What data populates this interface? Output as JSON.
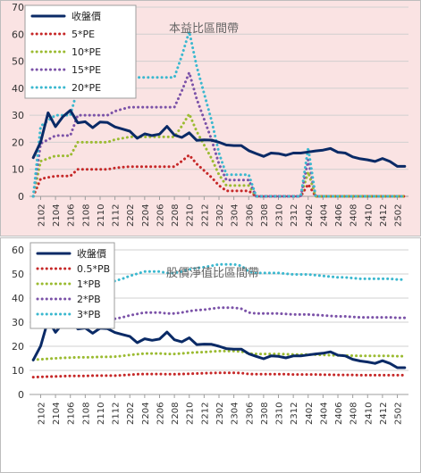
{
  "chart_data": [
    {
      "type": "line",
      "title": "本益比區間帶",
      "xlabel": "",
      "ylabel": "",
      "ylim": [
        0,
        70
      ],
      "yticks": [
        0,
        10,
        20,
        30,
        40,
        50,
        60,
        70
      ],
      "grid": true,
      "background": "#fae3e3",
      "legend_position": "top-left",
      "x": [
        "2101",
        "2102",
        "2103",
        "2104",
        "2105",
        "2106",
        "2107",
        "2108",
        "2109",
        "2110",
        "2111",
        "2112",
        "2201",
        "2202",
        "2203",
        "2204",
        "2205",
        "2206",
        "2207",
        "2208",
        "2209",
        "2210",
        "2211",
        "2212",
        "2301",
        "2302",
        "2303",
        "2304",
        "2305",
        "2306",
        "2307",
        "2308",
        "2309",
        "2310",
        "2311",
        "2312",
        "2401",
        "2402",
        "2403",
        "2404",
        "2405",
        "2406",
        "2407",
        "2408",
        "2409",
        "2410",
        "2411",
        "2412",
        "2501",
        "2502",
        "2503"
      ],
      "xtick_labels": [
        "2102",
        "2104",
        "2106",
        "2108",
        "2110",
        "2112",
        "2202",
        "2204",
        "2206",
        "2208",
        "2210",
        "2212",
        "2302",
        "2304",
        "2306",
        "2308",
        "2310",
        "2312",
        "2402",
        "2404",
        "2406",
        "2408",
        "2410",
        "2412",
        "2502"
      ],
      "series": [
        {
          "name": "收盤價",
          "color": "#0a2a66",
          "style": "solid",
          "values": [
            14.3,
            20.1,
            30.9,
            25.8,
            29.5,
            31.8,
            27.2,
            27.6,
            25.4,
            27.5,
            27.3,
            25.7,
            24.9,
            24.1,
            21.5,
            23.1,
            22.5,
            23.0,
            25.9,
            22.7,
            21.8,
            23.5,
            20.7,
            20.9,
            20.8,
            20.0,
            19.0,
            18.8,
            18.8,
            16.9,
            15.8,
            14.8,
            16.0,
            15.8,
            15.2,
            16.0,
            16.0,
            16.4,
            16.8,
            17.1,
            17.7,
            16.3,
            16.0,
            14.6,
            13.9,
            13.5,
            12.9,
            14.0,
            12.9,
            11.1,
            11.1
          ]
        },
        {
          "name": "5*PE",
          "color": "#c62828",
          "style": "dotted",
          "values": [
            0,
            6.5,
            7.0,
            7.5,
            7.5,
            7.5,
            10.0,
            10.0,
            10.0,
            10.0,
            10.0,
            10.5,
            10.8,
            11.0,
            11.0,
            11.0,
            11.0,
            11.0,
            11.0,
            11.0,
            13.0,
            15.3,
            12.0,
            9.5,
            7.0,
            4.0,
            2.0,
            2.0,
            2.0,
            2.0,
            0,
            0,
            0,
            0,
            0,
            0,
            0,
            4.5,
            0,
            0,
            0,
            0,
            0,
            0,
            0,
            0,
            0,
            0,
            0,
            0,
            0
          ]
        },
        {
          "name": "10*PE",
          "color": "#9bbb31",
          "style": "dotted",
          "values": [
            0,
            13.0,
            14.0,
            15.0,
            15.0,
            15.0,
            20.0,
            20.0,
            20.0,
            20.0,
            20.0,
            21.0,
            21.5,
            22.0,
            22.0,
            22.0,
            22.0,
            22.0,
            22.0,
            22.0,
            26.0,
            30.5,
            24.0,
            19.0,
            14.0,
            8.0,
            4.0,
            4.0,
            4.0,
            4.0,
            0,
            0,
            0,
            0,
            0,
            0,
            0,
            9.0,
            0,
            0,
            0,
            0,
            0,
            0,
            0,
            0,
            0,
            0,
            0,
            0,
            0
          ]
        },
        {
          "name": "15*PE",
          "color": "#7b52a8",
          "style": "dotted",
          "values": [
            0,
            19.5,
            21.0,
            22.5,
            22.5,
            22.5,
            30.0,
            30.0,
            30.0,
            30.0,
            30.0,
            31.5,
            32.3,
            33.0,
            33.0,
            33.0,
            33.0,
            33.0,
            33.0,
            33.0,
            39.0,
            45.8,
            36.0,
            28.5,
            21.0,
            12.0,
            6.0,
            6.0,
            6.0,
            6.0,
            0,
            0,
            0,
            0,
            0,
            0,
            0,
            13.5,
            0,
            0,
            0,
            0,
            0,
            0,
            0,
            0,
            0,
            0,
            0,
            0,
            0
          ]
        },
        {
          "name": "20*PE",
          "color": "#3bb8cf",
          "style": "dotted",
          "values": [
            0,
            26.0,
            28.0,
            30.0,
            30.0,
            30.0,
            40.0,
            40.0,
            40.0,
            40.0,
            40.0,
            42.0,
            43.0,
            44.0,
            44.0,
            44.0,
            44.0,
            44.0,
            44.0,
            44.0,
            52.0,
            61.0,
            48.0,
            38.0,
            28.0,
            16.0,
            8.0,
            8.0,
            8.0,
            8.0,
            0,
            0,
            0,
            0,
            0,
            0,
            0,
            18.0,
            0,
            0,
            0,
            0,
            0,
            0,
            0,
            0,
            0,
            0,
            0,
            0,
            0
          ]
        }
      ]
    },
    {
      "type": "line",
      "title": "股價淨值比區間帶",
      "xlabel": "",
      "ylabel": "",
      "ylim": [
        0,
        60
      ],
      "yticks": [
        0,
        10,
        20,
        30,
        40,
        50,
        60
      ],
      "grid": true,
      "background": "#ffffff",
      "legend_position": "top-left",
      "x": [
        "2101",
        "2102",
        "2103",
        "2104",
        "2105",
        "2106",
        "2107",
        "2108",
        "2109",
        "2110",
        "2111",
        "2112",
        "2201",
        "2202",
        "2203",
        "2204",
        "2205",
        "2206",
        "2207",
        "2208",
        "2209",
        "2210",
        "2211",
        "2212",
        "2301",
        "2302",
        "2303",
        "2304",
        "2305",
        "2306",
        "2307",
        "2308",
        "2309",
        "2310",
        "2311",
        "2312",
        "2401",
        "2402",
        "2403",
        "2404",
        "2405",
        "2406",
        "2407",
        "2408",
        "2409",
        "2410",
        "2411",
        "2412",
        "2501",
        "2502",
        "2503"
      ],
      "xtick_labels": [
        "2102",
        "2104",
        "2106",
        "2108",
        "2110",
        "2112",
        "2202",
        "2204",
        "2206",
        "2208",
        "2210",
        "2212",
        "2302",
        "2304",
        "2306",
        "2308",
        "2310",
        "2312",
        "2402",
        "2404",
        "2406",
        "2408",
        "2410",
        "2412",
        "2502"
      ],
      "series": [
        {
          "name": "收盤價",
          "color": "#0a2a66",
          "style": "solid",
          "values": [
            14.3,
            20.1,
            30.9,
            25.8,
            29.5,
            31.8,
            27.2,
            27.6,
            25.4,
            27.5,
            27.3,
            25.7,
            24.9,
            24.1,
            21.5,
            23.1,
            22.5,
            23.0,
            25.9,
            22.7,
            21.8,
            23.5,
            20.7,
            20.9,
            20.8,
            20.0,
            19.0,
            18.8,
            18.8,
            16.9,
            15.8,
            14.8,
            16.0,
            15.8,
            15.2,
            16.0,
            16.0,
            16.4,
            16.8,
            17.1,
            17.7,
            16.3,
            16.0,
            14.6,
            13.9,
            13.5,
            12.9,
            14.0,
            12.9,
            11.1,
            11.1
          ]
        },
        {
          "name": "0.5*PB",
          "color": "#c62828",
          "style": "dotted",
          "values": [
            7.2,
            7.3,
            7.4,
            7.5,
            7.6,
            7.7,
            7.7,
            7.7,
            7.8,
            7.8,
            7.8,
            7.8,
            8.0,
            8.2,
            8.4,
            8.5,
            8.5,
            8.5,
            8.4,
            8.4,
            8.5,
            8.6,
            8.7,
            8.8,
            8.9,
            9.0,
            9.0,
            9.0,
            8.9,
            8.5,
            8.4,
            8.4,
            8.4,
            8.4,
            8.4,
            8.3,
            8.3,
            8.3,
            8.3,
            8.2,
            8.2,
            8.1,
            8.1,
            8.1,
            8.0,
            8.0,
            8.0,
            8.0,
            8.0,
            8.0,
            8.0
          ]
        },
        {
          "name": "1*PB",
          "color": "#9bbb31",
          "style": "dotted",
          "values": [
            14.4,
            14.6,
            14.8,
            15.0,
            15.2,
            15.3,
            15.4,
            15.4,
            15.5,
            15.6,
            15.6,
            15.7,
            16.0,
            16.4,
            16.7,
            17.0,
            17.0,
            17.0,
            16.8,
            16.8,
            17.0,
            17.3,
            17.5,
            17.6,
            17.8,
            18.0,
            18.0,
            18.0,
            17.8,
            17.0,
            16.8,
            16.8,
            16.8,
            16.8,
            16.7,
            16.6,
            16.6,
            16.6,
            16.5,
            16.4,
            16.3,
            16.2,
            16.2,
            16.1,
            16.0,
            16.0,
            16.0,
            16.0,
            16.0,
            15.9,
            15.9
          ]
        },
        {
          "name": "2*PB",
          "color": "#7b52a8",
          "style": "dotted",
          "values": [
            28.8,
            29.2,
            29.6,
            30.0,
            30.4,
            30.6,
            30.8,
            30.8,
            31.0,
            31.2,
            31.2,
            31.4,
            32.0,
            32.8,
            33.4,
            34.0,
            34.0,
            34.0,
            33.6,
            33.6,
            34.0,
            34.6,
            35.0,
            35.2,
            35.6,
            36.0,
            36.0,
            36.0,
            35.6,
            34.0,
            33.6,
            33.6,
            33.6,
            33.6,
            33.4,
            33.2,
            33.2,
            33.2,
            33.0,
            32.8,
            32.6,
            32.4,
            32.4,
            32.2,
            32.0,
            32.0,
            32.0,
            32.0,
            32.0,
            31.8,
            31.8
          ]
        },
        {
          "name": "3*PB",
          "color": "#3bb8cf",
          "style": "dotted",
          "values": [
            43.2,
            43.8,
            44.4,
            45.0,
            45.6,
            45.9,
            46.2,
            46.2,
            46.5,
            46.8,
            46.8,
            47.1,
            48.0,
            49.2,
            50.1,
            51.0,
            51.0,
            51.0,
            50.4,
            50.4,
            51.0,
            51.9,
            52.5,
            52.8,
            53.4,
            54.0,
            54.0,
            54.0,
            53.4,
            51.0,
            50.4,
            50.4,
            50.4,
            50.4,
            50.1,
            49.8,
            49.8,
            49.8,
            49.5,
            49.2,
            48.9,
            48.6,
            48.6,
            48.3,
            48.0,
            48.0,
            48.0,
            48.0,
            48.0,
            47.7,
            47.7
          ]
        }
      ]
    }
  ]
}
